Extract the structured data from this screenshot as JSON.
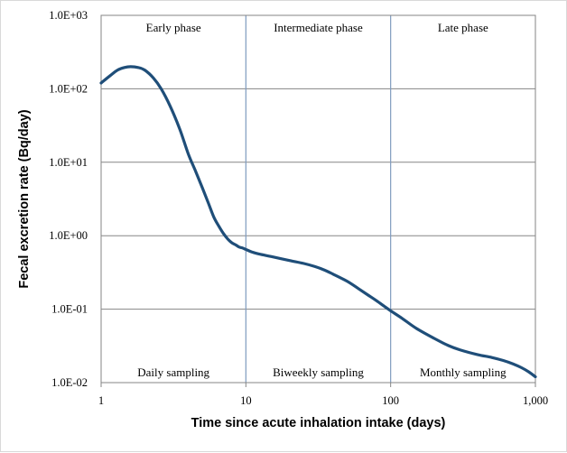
{
  "chart_data": {
    "type": "line",
    "title": "",
    "xlabel": "Time since acute inhalation intake (days)",
    "ylabel": "Fecal excretion rate (Bq/day)",
    "xscale": "log",
    "yscale": "log",
    "xlim": [
      1,
      1000
    ],
    "ylim": [
      0.01,
      1000
    ],
    "x_tick_labels": [
      "1",
      "10",
      "100",
      "1,000"
    ],
    "y_tick_labels": [
      "1.0E-02",
      "1.0E-01",
      "1.0E+00",
      "1.0E+01",
      "1.0E+02",
      "1.0E+03"
    ],
    "grid": "horizontal gridlines at each decade",
    "legend": "none",
    "line_color": "#1f4e79",
    "divider_color": "#7f9cbf",
    "phase_boundaries_x": [
      10,
      100
    ],
    "phase_labels_top": [
      "Early phase",
      "Intermediate phase",
      "Late phase"
    ],
    "sampling_labels_bottom": [
      "Daily sampling",
      "Biweekly sampling",
      "Monthly sampling"
    ],
    "series": [
      {
        "x": [
          1,
          1.15,
          1.3,
          1.45,
          1.6,
          1.8,
          2.0,
          2.3,
          2.6,
          3.0,
          3.5,
          4.0,
          4.5,
          5.0,
          5.5,
          6.0,
          6.5,
          7.0,
          7.5,
          8.0,
          8.5,
          9.0,
          9.5,
          10,
          11,
          12.5,
          15,
          20,
          25,
          30,
          35,
          40,
          50,
          60,
          70,
          80,
          90,
          100,
          120,
          150,
          200,
          250,
          300,
          400,
          500,
          600,
          700,
          800,
          900,
          1000
        ],
        "y": [
          120,
          150,
          180,
          195,
          200,
          195,
          180,
          140,
          100,
          58,
          28,
          13,
          7.5,
          4.5,
          2.8,
          1.8,
          1.35,
          1.07,
          0.9,
          0.8,
          0.75,
          0.7,
          0.68,
          0.65,
          0.6,
          0.56,
          0.52,
          0.46,
          0.42,
          0.38,
          0.34,
          0.3,
          0.24,
          0.19,
          0.155,
          0.13,
          0.11,
          0.095,
          0.075,
          0.055,
          0.04,
          0.032,
          0.028,
          0.024,
          0.022,
          0.02,
          0.018,
          0.016,
          0.014,
          0.012
        ]
      }
    ]
  }
}
